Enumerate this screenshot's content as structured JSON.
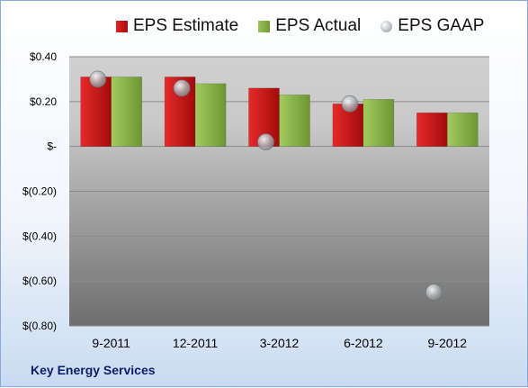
{
  "legend": {
    "estimate": "EPS Estimate",
    "actual": "EPS Actual",
    "gaap": "EPS GAAP"
  },
  "company": "Key Energy Services",
  "chart_data": {
    "type": "bar",
    "title": "",
    "xlabel": "",
    "ylabel": "",
    "ylim": [
      -0.8,
      0.4
    ],
    "y_ticks": [
      0.4,
      0.2,
      0,
      -0.2,
      -0.4,
      -0.6,
      -0.8
    ],
    "y_tick_labels": [
      "$0.40",
      "$0.20",
      "$-",
      "$(0.20)",
      "$(0.40)",
      "$(0.60)",
      "$(0.80)"
    ],
    "categories": [
      "9-2011",
      "12-2011",
      "3-2012",
      "6-2012",
      "9-2012"
    ],
    "series": [
      {
        "name": "EPS Estimate",
        "type": "bar",
        "values": [
          0.31,
          0.31,
          0.26,
          0.19,
          0.15
        ]
      },
      {
        "name": "EPS Actual",
        "type": "bar",
        "values": [
          0.31,
          0.28,
          0.23,
          0.21,
          0.15
        ]
      },
      {
        "name": "EPS GAAP",
        "type": "scatter",
        "values": [
          0.3,
          0.26,
          0.02,
          0.19,
          -0.65
        ]
      }
    ],
    "grid": true,
    "legend_position": "top",
    "colors": {
      "estimate": "#cc1f1f",
      "actual": "#8cb84a",
      "gaap": "#b0b4ba"
    }
  }
}
